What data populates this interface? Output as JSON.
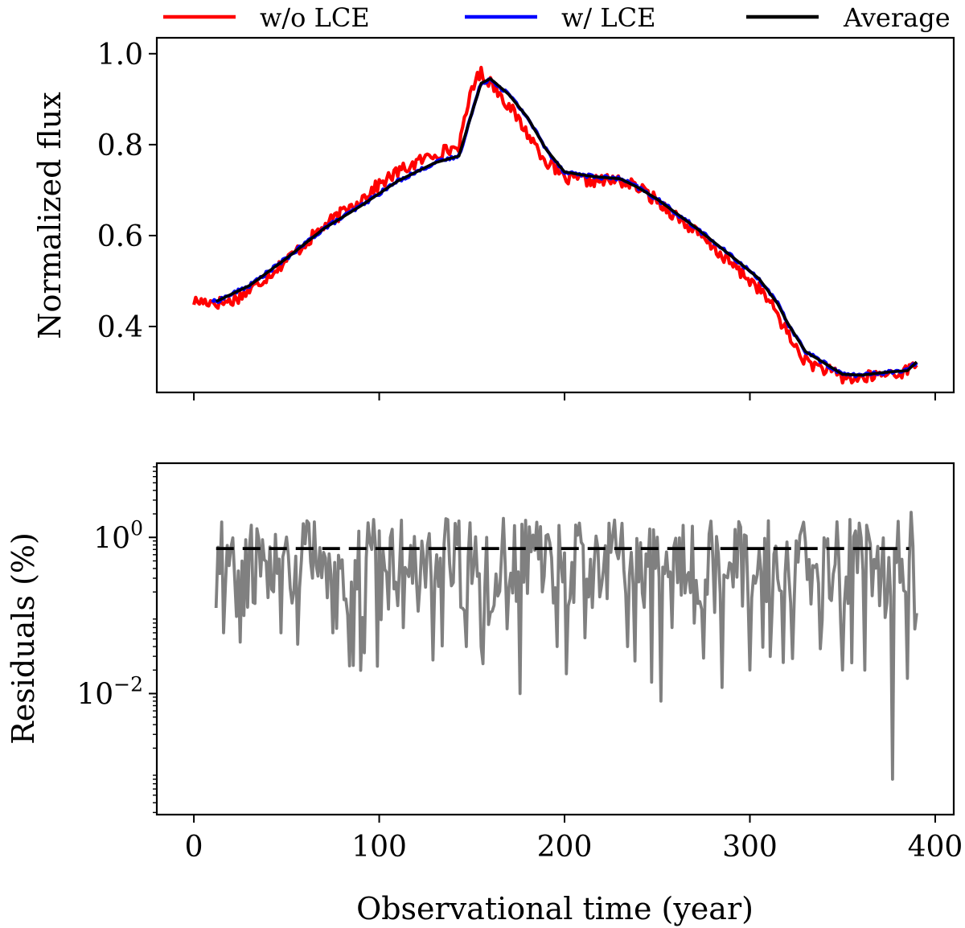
{
  "chart_data": {
    "type": "line",
    "legend": {
      "placement": "top",
      "entries": [
        {
          "label": "w/o LCE",
          "color": "#ff0000"
        },
        {
          "label": "w/ LCE",
          "color": "#0000ff"
        },
        {
          "label": "Average",
          "color": "#000000"
        }
      ]
    },
    "shared_x": {
      "label": "Observational time (year)",
      "range": [
        -20,
        410
      ],
      "ticks": [
        0,
        100,
        200,
        300,
        400
      ],
      "tick_labels": [
        "0",
        "100",
        "200",
        "300",
        "400"
      ]
    },
    "panels": [
      {
        "id": "flux",
        "ylabel": "Normalized flux",
        "yscale": "linear",
        "ylim": [
          0.255,
          1.035
        ],
        "yticks": [
          0.4,
          0.6,
          0.8,
          1.0
        ],
        "ytick_labels": [
          "0.4",
          "0.6",
          "0.8",
          "1.0"
        ],
        "average_keypoints": {
          "x": [
            12,
            30,
            50,
            70,
            90,
            110,
            130,
            143,
            150,
            155,
            160,
            170,
            180,
            190,
            200,
            215,
            230,
            240,
            250,
            270,
            290,
            305,
            315,
            320,
            330,
            340,
            350,
            360,
            375,
            385,
            390
          ],
          "y": [
            0.455,
            0.49,
            0.55,
            0.615,
            0.665,
            0.72,
            0.76,
            0.775,
            0.87,
            0.935,
            0.945,
            0.91,
            0.86,
            0.79,
            0.74,
            0.73,
            0.725,
            0.705,
            0.68,
            0.62,
            0.555,
            0.505,
            0.45,
            0.41,
            0.345,
            0.32,
            0.295,
            0.293,
            0.3,
            0.303,
            0.322
          ]
        },
        "series": [
          {
            "name": "w/o LCE",
            "color": "#ff0000",
            "x_range": [
              0,
              390
            ],
            "step": 1,
            "offset": [
              [
                10,
                0.0
              ],
              [
                20,
                -0.015
              ],
              [
                60,
                0.0
              ],
              [
                100,
                0.02
              ],
              [
                140,
                0.02
              ],
              [
                145,
                0.025
              ],
              [
                150,
                0.06
              ],
              [
                158,
                0.0
              ],
              [
                170,
                -0.025
              ],
              [
                180,
                -0.035
              ],
              [
                200,
                -0.015
              ],
              [
                240,
                0.0
              ],
              [
                270,
                -0.01
              ],
              [
                300,
                -0.02
              ],
              [
                325,
                -0.025
              ],
              [
                345,
                -0.01
              ],
              [
                390,
                0.0
              ]
            ],
            "noise_amplitude": 0.014
          },
          {
            "name": "w/ LCE",
            "color": "#0000ff",
            "x_range": [
              10,
              390
            ],
            "step": 1,
            "offset": [
              [
                0,
                0.0
              ],
              [
                390,
                0.0
              ]
            ],
            "noise_amplitude": 0.004
          },
          {
            "name": "Average",
            "color": "#000000",
            "x_range": [
              12,
              390
            ],
            "step": 1,
            "offset": [
              [
                0,
                0.0
              ],
              [
                390,
                0.0
              ]
            ],
            "noise_amplitude": 0.0
          }
        ]
      },
      {
        "id": "residuals",
        "ylabel": "Residuals (%)",
        "yscale": "log",
        "ylim_log10": [
          -3.55,
          0.95
        ],
        "yticks_log10": [
          -2,
          0
        ],
        "ytick_labels": [
          {
            "base": "10",
            "exp": "−2"
          },
          {
            "base": "10",
            "exp": "0"
          }
        ],
        "series": [
          {
            "name": "residual",
            "color": "#808080",
            "x_range": [
              12,
              390
            ],
            "step": 1,
            "typical": 0.35,
            "spikes": [
              [
                16,
                0.06
              ],
              [
                27,
                0.1
              ],
              [
                47,
                0.06
              ],
              [
                75,
                0.06
              ],
              [
                120,
                0.3
              ],
              [
                147,
                0.04
              ],
              [
                155,
                0.04
              ],
              [
                176,
                0.01
              ],
              [
                196,
                0.04
              ],
              [
                234,
                0.04
              ],
              [
                247,
                0.014
              ],
              [
                252,
                0.008
              ],
              [
                285,
                0.012
              ],
              [
                300,
                0.02
              ],
              [
                318,
                0.025
              ],
              [
                350,
                0.02
              ],
              [
                377,
                0.0008
              ],
              [
                384,
                0.2
              ],
              [
                386,
                0.5
              ],
              [
                387,
                2.1
              ]
            ]
          },
          {
            "name": "mean",
            "color": "#000000",
            "style": "dashed",
            "x": [
              12,
              386
            ],
            "y": [
              0.72,
              0.72
            ]
          }
        ]
      }
    ]
  }
}
